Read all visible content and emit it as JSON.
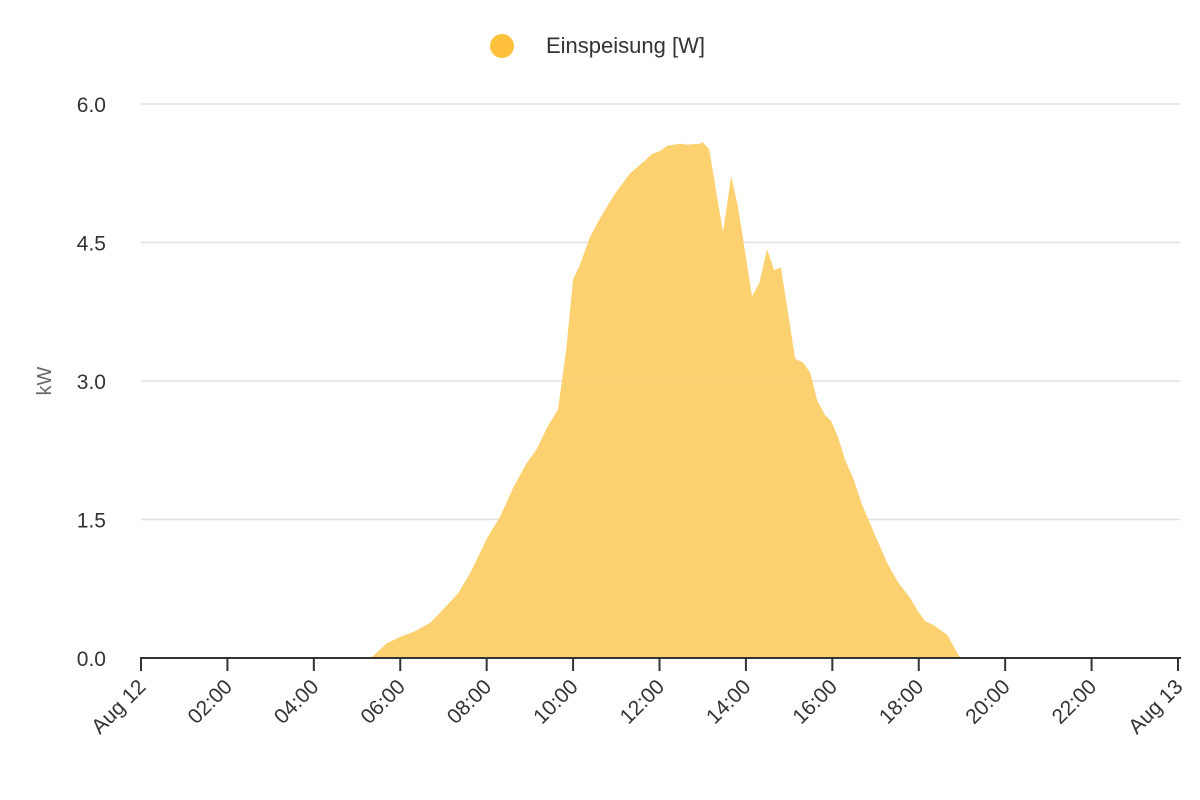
{
  "chart_data": {
    "type": "area",
    "title": "",
    "legend": {
      "label": "Einspeisung [W]",
      "placement": "top-center"
    },
    "xlabel": "",
    "ylabel": "kW",
    "ylim": [
      0,
      6
    ],
    "xlim_hours": [
      0,
      24
    ],
    "yticks": [
      {
        "value": 0,
        "label": "0.0"
      },
      {
        "value": 1.5,
        "label": "1.5"
      },
      {
        "value": 3,
        "label": "3.0"
      },
      {
        "value": 4.5,
        "label": "4.5"
      },
      {
        "value": 6,
        "label": "6.0"
      }
    ],
    "xticks": [
      {
        "value": 0,
        "label": "Aug 12"
      },
      {
        "value": 2,
        "label": "02:00"
      },
      {
        "value": 4,
        "label": "04:00"
      },
      {
        "value": 6,
        "label": "06:00"
      },
      {
        "value": 8,
        "label": "08:00"
      },
      {
        "value": 10,
        "label": "10:00"
      },
      {
        "value": 12,
        "label": "12:00"
      },
      {
        "value": 14,
        "label": "14:00"
      },
      {
        "value": 16,
        "label": "16:00"
      },
      {
        "value": 18,
        "label": "18:00"
      },
      {
        "value": 20,
        "label": "20:00"
      },
      {
        "value": 22,
        "label": "22:00"
      },
      {
        "value": 24,
        "label": "Aug 13"
      }
    ],
    "grid": true,
    "series": [
      {
        "name": "Einspeisung [W]",
        "color": "#fdcf68",
        "legend_color": "#ffc13b",
        "x_hours": [
          5.32,
          5.69,
          6.0,
          6.34,
          6.69,
          6.92,
          7.08,
          7.34,
          7.62,
          8.01,
          8.31,
          8.61,
          8.91,
          9.17,
          9.4,
          9.65,
          9.84,
          10.0,
          10.16,
          10.39,
          10.63,
          10.97,
          11.32,
          11.67,
          11.83,
          12.01,
          12.18,
          12.48,
          12.66,
          12.94,
          12.99,
          13.15,
          13.47,
          13.66,
          13.82,
          14.14,
          14.31,
          14.49,
          14.65,
          14.81,
          15.14,
          15.32,
          15.49,
          15.65,
          15.83,
          15.97,
          16.13,
          16.3,
          16.48,
          16.69,
          16.99,
          17.29,
          17.52,
          17.8,
          17.99,
          18.15,
          18.33,
          18.66,
          18.96
        ],
        "values_kw": [
          0,
          0.16,
          0.23,
          0.29,
          0.38,
          0.49,
          0.57,
          0.7,
          0.92,
          1.3,
          1.53,
          1.84,
          2.1,
          2.27,
          2.5,
          2.69,
          3.34,
          4.1,
          4.26,
          4.56,
          4.77,
          5.03,
          5.25,
          5.39,
          5.46,
          5.49,
          5.55,
          5.57,
          5.56,
          5.57,
          5.59,
          5.51,
          4.61,
          5.22,
          4.88,
          3.92,
          4.06,
          4.43,
          4.2,
          4.23,
          3.24,
          3.2,
          3.09,
          2.79,
          2.63,
          2.57,
          2.39,
          2.14,
          1.95,
          1.66,
          1.33,
          1.01,
          0.82,
          0.65,
          0.5,
          0.4,
          0.36,
          0.25,
          0
        ]
      }
    ]
  }
}
